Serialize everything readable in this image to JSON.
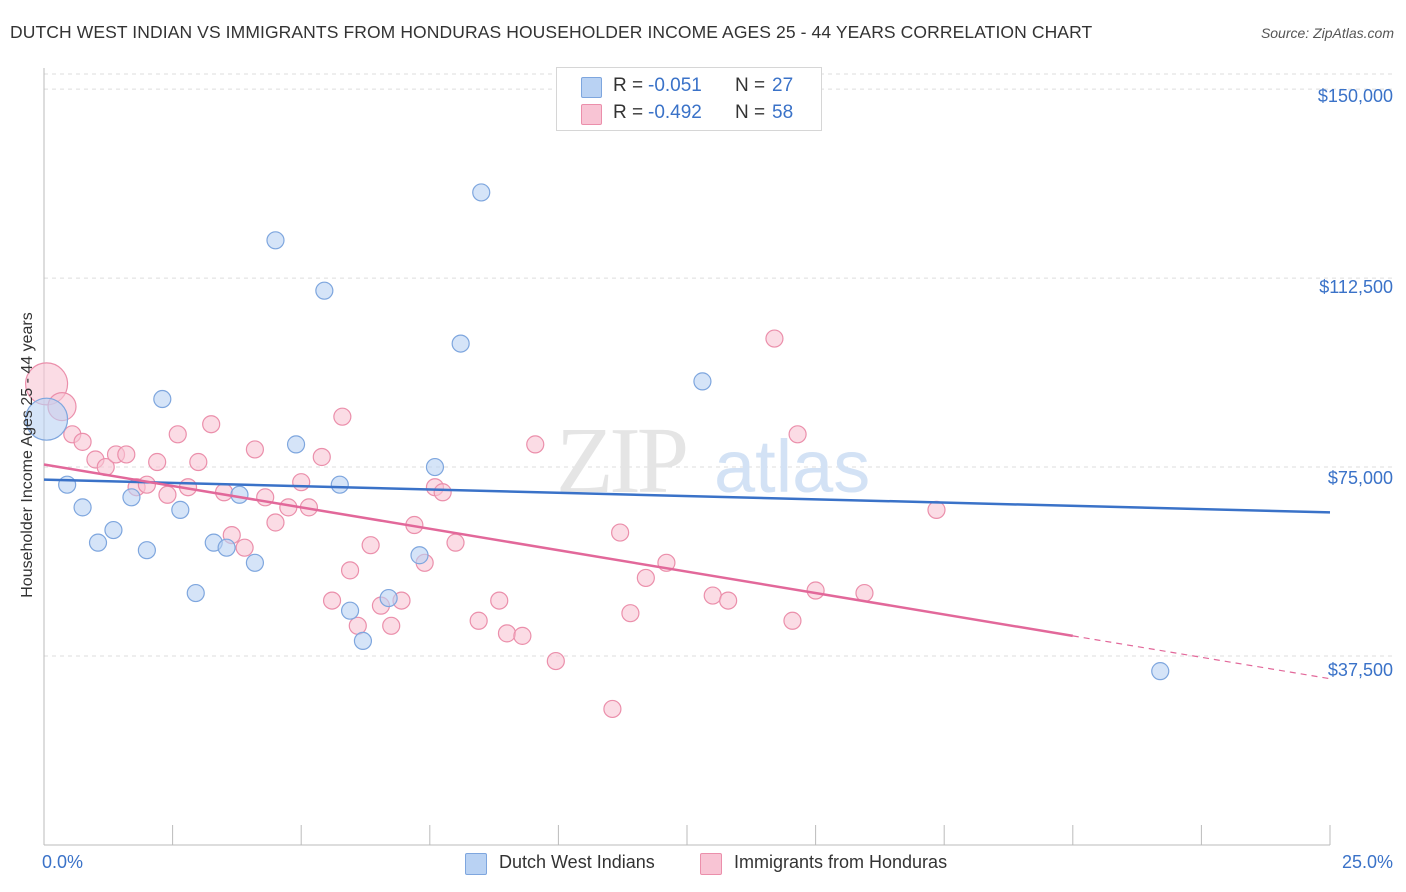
{
  "title": "DUTCH WEST INDIAN VS IMMIGRANTS FROM HONDURAS HOUSEHOLDER INCOME AGES 25 - 44 YEARS CORRELATION CHART",
  "source": "Source: ZipAtlas.com",
  "watermark": {
    "zip": "ZIP",
    "atlas": "atlas"
  },
  "legend": {
    "r_label": "R =",
    "n_label": "N =",
    "series": [
      {
        "r": "-0.051",
        "n": "27"
      },
      {
        "r": "-0.492",
        "n": "58"
      }
    ]
  },
  "bottom_legend": [
    "Dutch West Indians",
    "Immigrants from Honduras"
  ],
  "colors": {
    "blue_fill": "#b9d2f3",
    "blue_stroke": "#7ea6de",
    "blue_line": "#3a72c8",
    "pink_fill": "#f8c4d4",
    "pink_stroke": "#eb8fab",
    "pink_line": "#e2689a",
    "grid": "#dddddd",
    "axis": "#bbbbbb",
    "tick_text": "#3a72c8"
  },
  "chart_data": {
    "type": "scatter",
    "title": "DUTCH WEST INDIAN VS IMMIGRANTS FROM HONDURAS HOUSEHOLDER INCOME AGES 25 - 44 YEARS CORRELATION CHART",
    "xlabel": "",
    "ylabel": "Householder Income Ages 25 - 44 years",
    "xlim": [
      0,
      25
    ],
    "ylim": [
      0,
      153000
    ],
    "x_tick_labels": [
      "0.0%",
      "25.0%"
    ],
    "y_ticks": [
      37500,
      75000,
      112500,
      150000
    ],
    "y_tick_labels": [
      "$37,500",
      "$75,000",
      "$112,500",
      "$150,000"
    ],
    "grid": true,
    "legend_position": "top-center",
    "series": [
      {
        "name": "Dutch West Indians",
        "r": -0.051,
        "n": 27,
        "trend": {
          "x": [
            0,
            25
          ],
          "y": [
            72500,
            66000
          ]
        },
        "points": [
          {
            "x": 0.05,
            "y": 84500,
            "big": true
          },
          {
            "x": 0.45,
            "y": 71500
          },
          {
            "x": 0.75,
            "y": 67000
          },
          {
            "x": 1.05,
            "y": 60000
          },
          {
            "x": 1.35,
            "y": 62500
          },
          {
            "x": 1.7,
            "y": 69000
          },
          {
            "x": 2.0,
            "y": 58500
          },
          {
            "x": 2.3,
            "y": 88500
          },
          {
            "x": 2.65,
            "y": 66500
          },
          {
            "x": 2.95,
            "y": 50000
          },
          {
            "x": 3.3,
            "y": 60000
          },
          {
            "x": 3.55,
            "y": 59000
          },
          {
            "x": 3.8,
            "y": 69500
          },
          {
            "x": 4.1,
            "y": 56000
          },
          {
            "x": 4.5,
            "y": 120000
          },
          {
            "x": 4.9,
            "y": 79500
          },
          {
            "x": 5.45,
            "y": 110000
          },
          {
            "x": 5.75,
            "y": 71500
          },
          {
            "x": 5.95,
            "y": 46500
          },
          {
            "x": 6.2,
            "y": 40500
          },
          {
            "x": 6.7,
            "y": 49000
          },
          {
            "x": 7.3,
            "y": 57500
          },
          {
            "x": 7.6,
            "y": 75000
          },
          {
            "x": 8.1,
            "y": 99500
          },
          {
            "x": 8.5,
            "y": 129500
          },
          {
            "x": 12.8,
            "y": 92000
          },
          {
            "x": 21.7,
            "y": 34500
          }
        ]
      },
      {
        "name": "Immigrants from Honduras",
        "r": -0.492,
        "n": 58,
        "trend": {
          "x": [
            0,
            20.0
          ],
          "y": [
            75500,
            41500
          ]
        },
        "trend_dashed": {
          "x": [
            20.0,
            25
          ],
          "y": [
            41500,
            33000
          ]
        },
        "points": [
          {
            "x": 0.05,
            "y": 91500,
            "big": true
          },
          {
            "x": 0.35,
            "y": 87000,
            "mid": true
          },
          {
            "x": 0.55,
            "y": 81500
          },
          {
            "x": 0.75,
            "y": 80000
          },
          {
            "x": 1.0,
            "y": 76500
          },
          {
            "x": 1.2,
            "y": 75000
          },
          {
            "x": 1.4,
            "y": 77500
          },
          {
            "x": 1.6,
            "y": 77500
          },
          {
            "x": 1.8,
            "y": 71000
          },
          {
            "x": 2.0,
            "y": 71500
          },
          {
            "x": 2.2,
            "y": 76000
          },
          {
            "x": 2.4,
            "y": 69500
          },
          {
            "x": 2.6,
            "y": 81500
          },
          {
            "x": 2.8,
            "y": 71000
          },
          {
            "x": 3.0,
            "y": 76000
          },
          {
            "x": 3.25,
            "y": 83500
          },
          {
            "x": 3.5,
            "y": 70000
          },
          {
            "x": 3.65,
            "y": 61500
          },
          {
            "x": 3.9,
            "y": 59000
          },
          {
            "x": 4.1,
            "y": 78500
          },
          {
            "x": 4.3,
            "y": 69000
          },
          {
            "x": 4.5,
            "y": 64000
          },
          {
            "x": 4.75,
            "y": 67000
          },
          {
            "x": 5.0,
            "y": 72000
          },
          {
            "x": 5.15,
            "y": 67000
          },
          {
            "x": 5.4,
            "y": 77000
          },
          {
            "x": 5.6,
            "y": 48500
          },
          {
            "x": 5.8,
            "y": 85000
          },
          {
            "x": 5.95,
            "y": 54500
          },
          {
            "x": 6.1,
            "y": 43500
          },
          {
            "x": 6.35,
            "y": 59500
          },
          {
            "x": 6.55,
            "y": 47500
          },
          {
            "x": 6.75,
            "y": 43500
          },
          {
            "x": 6.95,
            "y": 48500
          },
          {
            "x": 7.2,
            "y": 63500
          },
          {
            "x": 7.4,
            "y": 56000
          },
          {
            "x": 7.6,
            "y": 71000
          },
          {
            "x": 7.75,
            "y": 70000
          },
          {
            "x": 8.0,
            "y": 60000
          },
          {
            "x": 8.45,
            "y": 44500
          },
          {
            "x": 8.85,
            "y": 48500
          },
          {
            "x": 9.0,
            "y": 42000
          },
          {
            "x": 9.3,
            "y": 41500
          },
          {
            "x": 9.55,
            "y": 79500
          },
          {
            "x": 9.95,
            "y": 36500
          },
          {
            "x": 11.05,
            "y": 27000
          },
          {
            "x": 11.2,
            "y": 62000
          },
          {
            "x": 11.4,
            "y": 46000
          },
          {
            "x": 11.7,
            "y": 53000
          },
          {
            "x": 12.1,
            "y": 56000
          },
          {
            "x": 13.0,
            "y": 49500
          },
          {
            "x": 13.3,
            "y": 48500
          },
          {
            "x": 14.2,
            "y": 100500
          },
          {
            "x": 14.55,
            "y": 44500
          },
          {
            "x": 14.65,
            "y": 81500
          },
          {
            "x": 15.0,
            "y": 50500
          },
          {
            "x": 15.95,
            "y": 50000
          },
          {
            "x": 17.35,
            "y": 66500
          }
        ]
      }
    ]
  }
}
